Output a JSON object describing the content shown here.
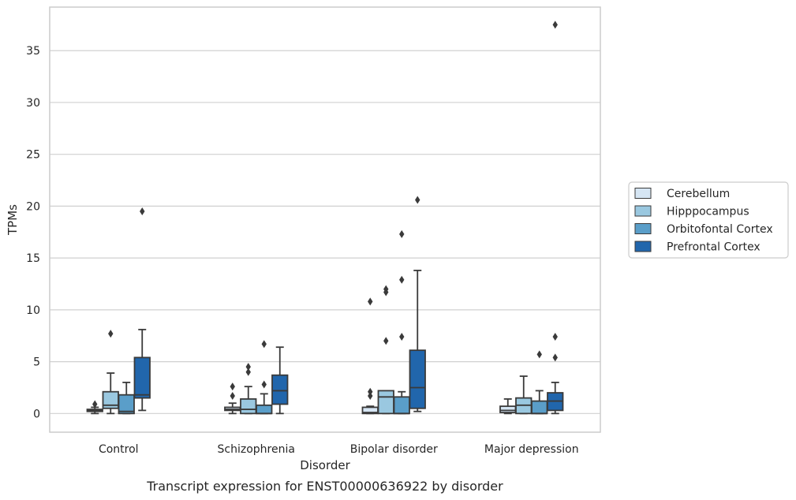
{
  "chart_data": {
    "type": "box",
    "title": "",
    "caption": "Transcript expression for ENST00000636922 by disorder",
    "xlabel": "Disorder",
    "ylabel": "TPMs",
    "ylim": [
      -1.8,
      39.2
    ],
    "yticks": [
      0,
      5,
      10,
      15,
      20,
      25,
      30,
      35
    ],
    "grid": "horizontal",
    "legend_position": "right",
    "categories": [
      "Control",
      "Schizophrenia",
      "Bipolar disorder",
      "Major depression"
    ],
    "series": [
      {
        "name": "Cerebellum",
        "color": "#d6e6f4",
        "boxes": [
          {
            "whislo": 0.0,
            "q1": 0.2,
            "med": 0.3,
            "q3": 0.4,
            "whishi": 0.6,
            "fliers": [
              0.9
            ]
          },
          {
            "whislo": 0.0,
            "q1": 0.3,
            "med": 0.4,
            "q3": 0.6,
            "whishi": 1.0,
            "fliers": [
              1.7,
              2.6
            ]
          },
          {
            "whislo": 0.0,
            "q1": 0.0,
            "med": 0.1,
            "q3": 0.6,
            "whishi": 0.7,
            "fliers": [
              1.7,
              2.1,
              10.8
            ]
          },
          {
            "whislo": 0.0,
            "q1": 0.1,
            "med": 0.3,
            "q3": 0.7,
            "whishi": 1.4,
            "fliers": []
          }
        ]
      },
      {
        "name": "Hipppocampus",
        "color": "#9ac8e0",
        "boxes": [
          {
            "whislo": 0.0,
            "q1": 0.5,
            "med": 0.8,
            "q3": 2.1,
            "whishi": 3.9,
            "fliers": [
              7.7
            ]
          },
          {
            "whislo": 0.0,
            "q1": 0.0,
            "med": 0.4,
            "q3": 1.4,
            "whishi": 2.6,
            "fliers": [
              4.0,
              4.5
            ]
          },
          {
            "whislo": 0.0,
            "q1": 0.0,
            "med": 1.6,
            "q3": 2.2,
            "whishi": 2.2,
            "fliers": [
              7.0,
              11.7,
              12.0
            ]
          },
          {
            "whislo": 0.0,
            "q1": 0.0,
            "med": 0.8,
            "q3": 1.5,
            "whishi": 3.6,
            "fliers": []
          }
        ]
      },
      {
        "name": "Orbitofontal Cortex",
        "color": "#5a9ec9",
        "boxes": [
          {
            "whislo": 0.0,
            "q1": 0.0,
            "med": 0.2,
            "q3": 1.8,
            "whishi": 3.0,
            "fliers": []
          },
          {
            "whislo": 0.0,
            "q1": 0.0,
            "med": 0.0,
            "q3": 0.8,
            "whishi": 1.9,
            "fliers": [
              2.8,
              6.7
            ]
          },
          {
            "whislo": 0.0,
            "q1": 0.0,
            "med": 0.0,
            "q3": 1.6,
            "whishi": 2.1,
            "fliers": [
              7.4,
              12.9,
              17.3
            ]
          },
          {
            "whislo": 0.0,
            "q1": 0.0,
            "med": 0.0,
            "q3": 1.2,
            "whishi": 2.2,
            "fliers": [
              5.7
            ]
          }
        ]
      },
      {
        "name": "Prefrontal Cortex",
        "color": "#2166ac",
        "boxes": [
          {
            "whislo": 0.3,
            "q1": 1.5,
            "med": 1.8,
            "q3": 5.4,
            "whishi": 8.1,
            "fliers": [
              19.5
            ]
          },
          {
            "whislo": 0.0,
            "q1": 0.9,
            "med": 2.2,
            "q3": 3.7,
            "whishi": 6.4,
            "fliers": []
          },
          {
            "whislo": 0.2,
            "q1": 0.5,
            "med": 2.5,
            "q3": 6.1,
            "whishi": 13.8,
            "fliers": [
              20.6
            ]
          },
          {
            "whislo": 0.0,
            "q1": 0.3,
            "med": 1.2,
            "q3": 2.0,
            "whishi": 3.0,
            "fliers": [
              5.4,
              7.4,
              37.5
            ]
          }
        ]
      }
    ]
  }
}
